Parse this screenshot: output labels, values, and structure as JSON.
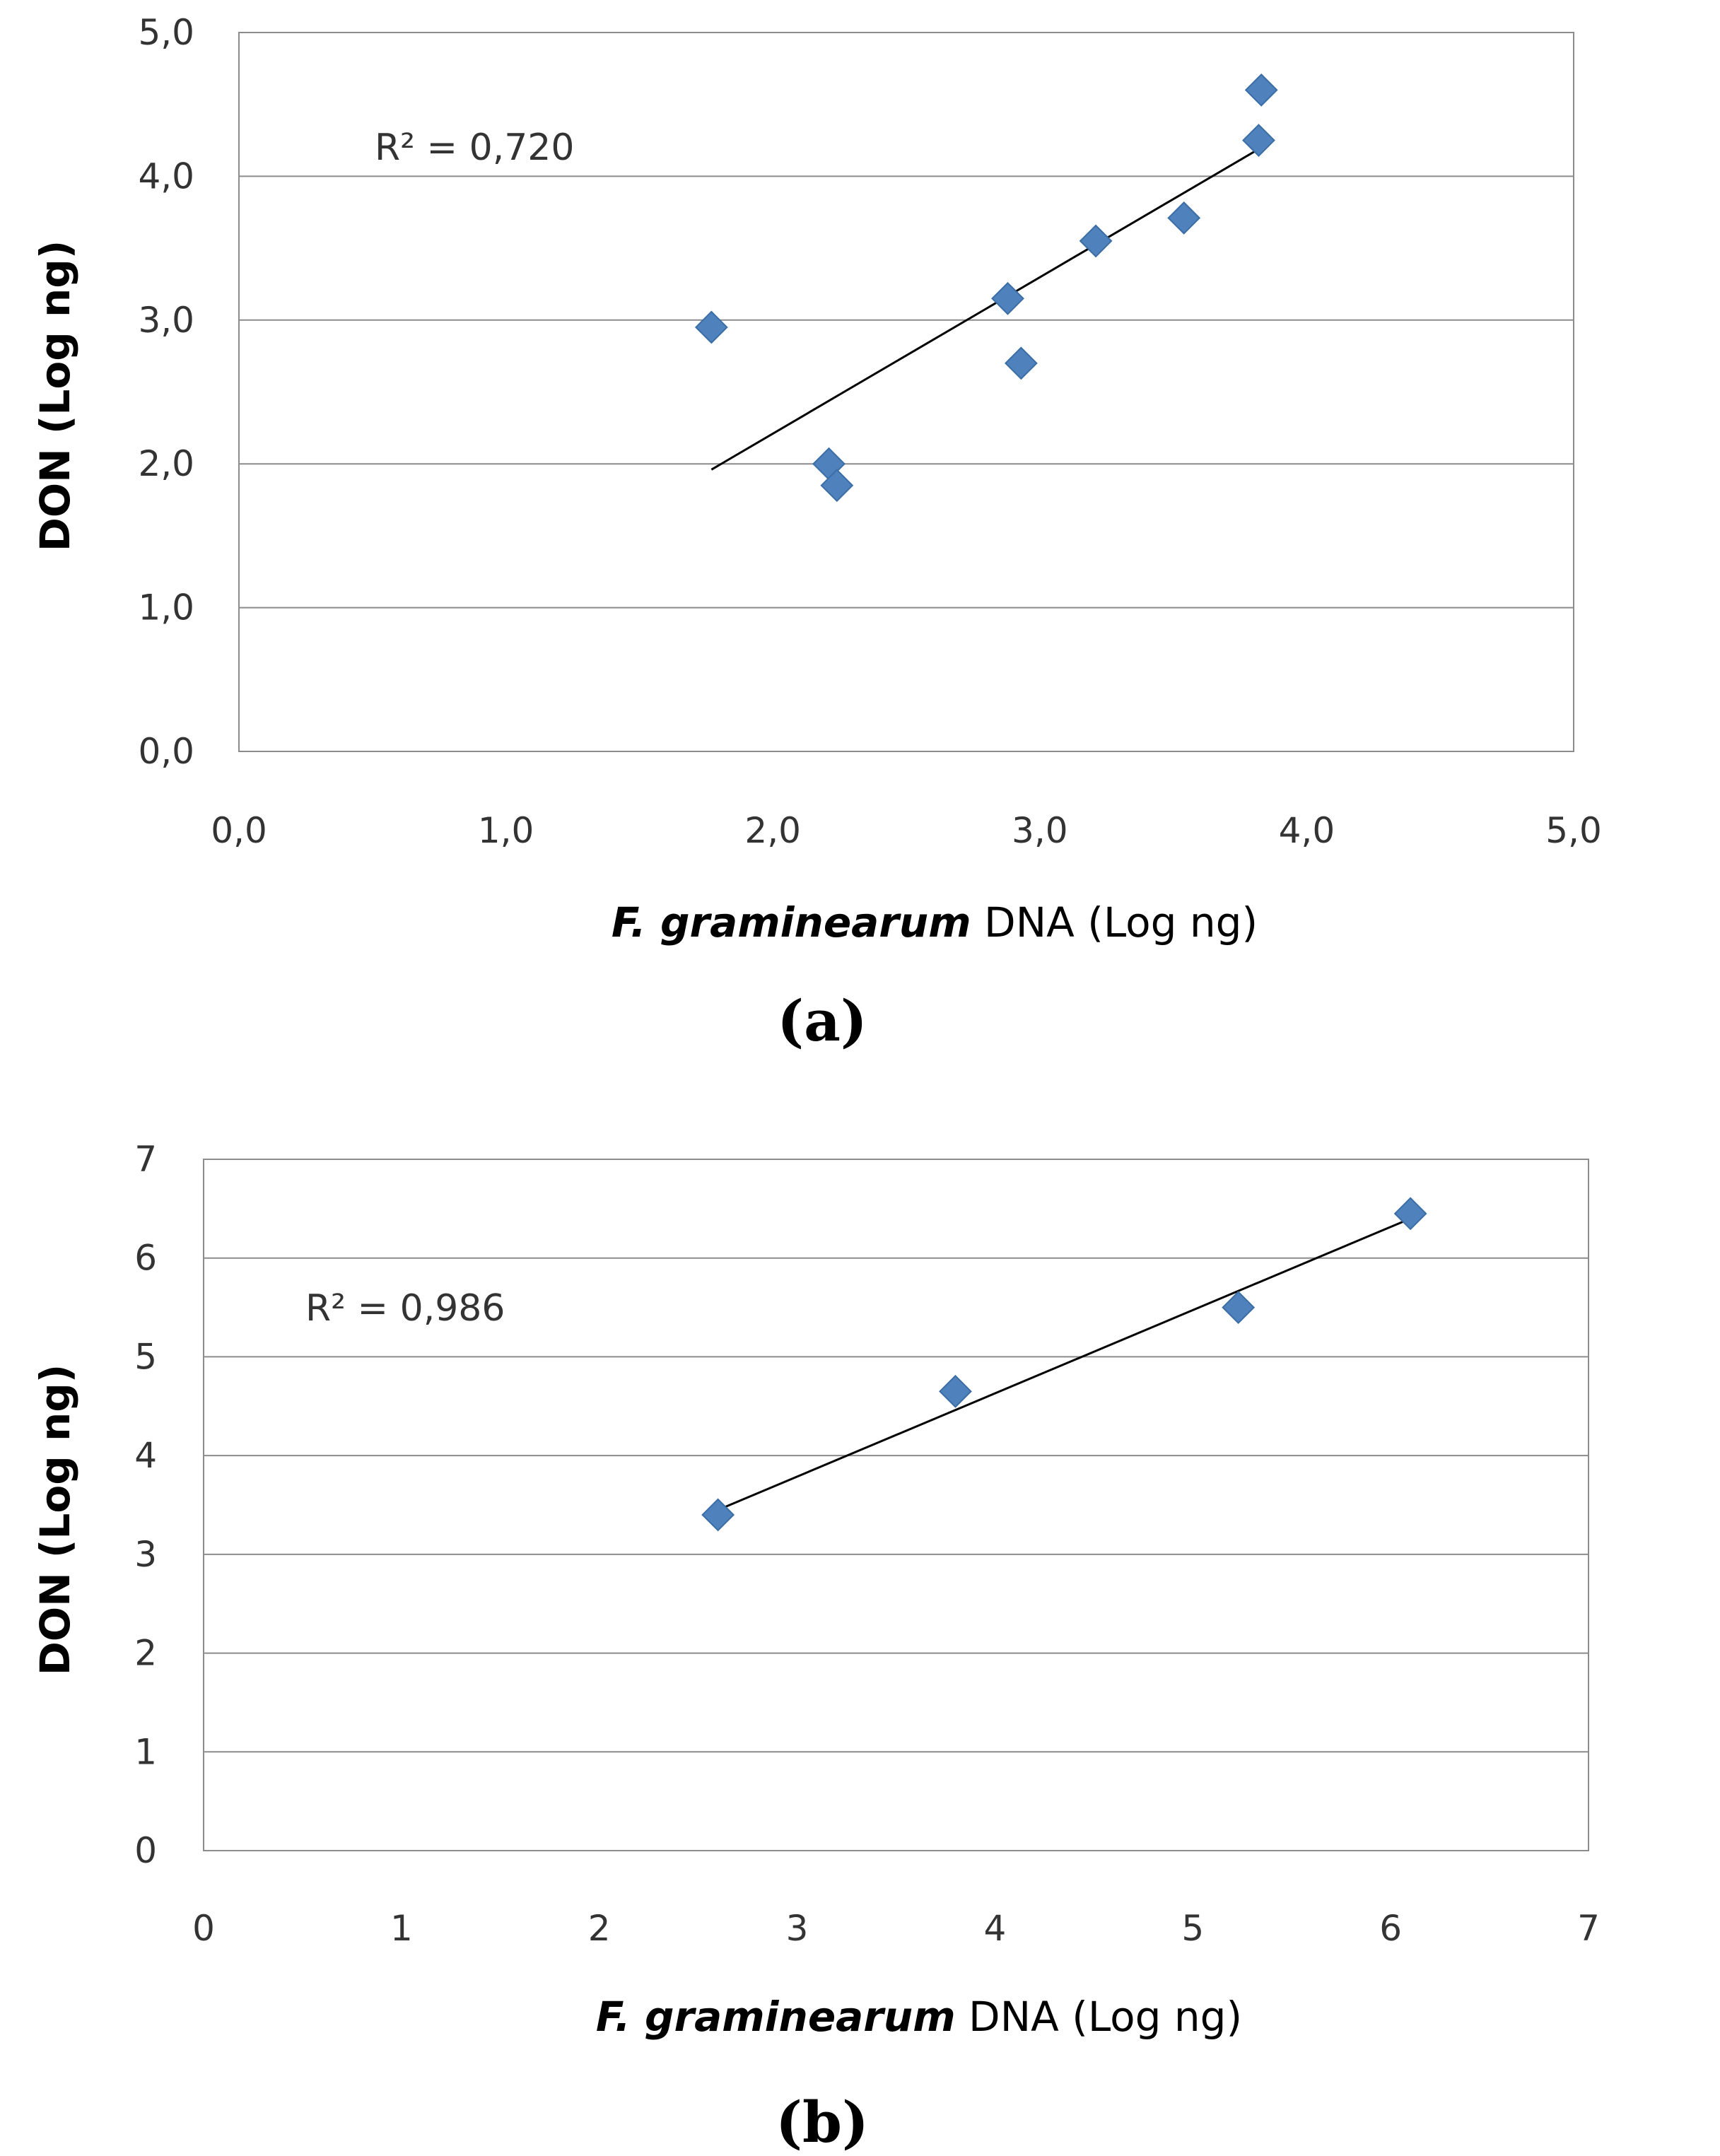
{
  "chart_data": [
    {
      "type": "scatter",
      "panel_label": "(a)",
      "xlabel_italic": "F. graminearum",
      "xlabel_rest": " DNA (Log ng)",
      "ylabel": "DON (Log ng)",
      "xlim": [
        0,
        5
      ],
      "ylim": [
        0,
        5
      ],
      "x_ticks": [
        "0,0",
        "1,0",
        "2,0",
        "3,0",
        "4,0",
        "5,0"
      ],
      "y_ticks": [
        "0,0",
        "1,0",
        "2,0",
        "3,0",
        "4,0",
        "5,0"
      ],
      "grid": "horizontal",
      "annotation": "R² = 0,720",
      "points": [
        {
          "x": 1.77,
          "y": 2.95
        },
        {
          "x": 2.21,
          "y": 2.0
        },
        {
          "x": 2.24,
          "y": 1.85
        },
        {
          "x": 2.88,
          "y": 3.15
        },
        {
          "x": 2.93,
          "y": 2.7
        },
        {
          "x": 3.21,
          "y": 3.55
        },
        {
          "x": 3.54,
          "y": 3.71
        },
        {
          "x": 3.82,
          "y": 4.25
        },
        {
          "x": 3.83,
          "y": 4.6
        }
      ],
      "trendline": [
        {
          "x": 1.77,
          "y": 1.96
        },
        {
          "x": 3.83,
          "y": 4.2
        }
      ],
      "marker_color": "#4f81bd"
    },
    {
      "type": "scatter",
      "panel_label": "(b)",
      "xlabel_italic": "F. graminearum",
      "xlabel_rest": " DNA (Log ng)",
      "ylabel": "DON (Log ng)",
      "xlim": [
        0,
        7
      ],
      "ylim": [
        0,
        7
      ],
      "x_ticks": [
        "0",
        "1",
        "2",
        "3",
        "4",
        "5",
        "6",
        "7"
      ],
      "y_ticks": [
        "0",
        "1",
        "2",
        "3",
        "4",
        "5",
        "6",
        "7"
      ],
      "grid": "horizontal",
      "annotation": "R² = 0,986",
      "points": [
        {
          "x": 2.6,
          "y": 3.4
        },
        {
          "x": 3.8,
          "y": 4.65
        },
        {
          "x": 5.23,
          "y": 5.5
        },
        {
          "x": 6.1,
          "y": 6.45
        }
      ],
      "trendline": [
        {
          "x": 2.6,
          "y": 3.45
        },
        {
          "x": 6.1,
          "y": 6.4
        }
      ],
      "marker_color": "#4f81bd"
    }
  ]
}
